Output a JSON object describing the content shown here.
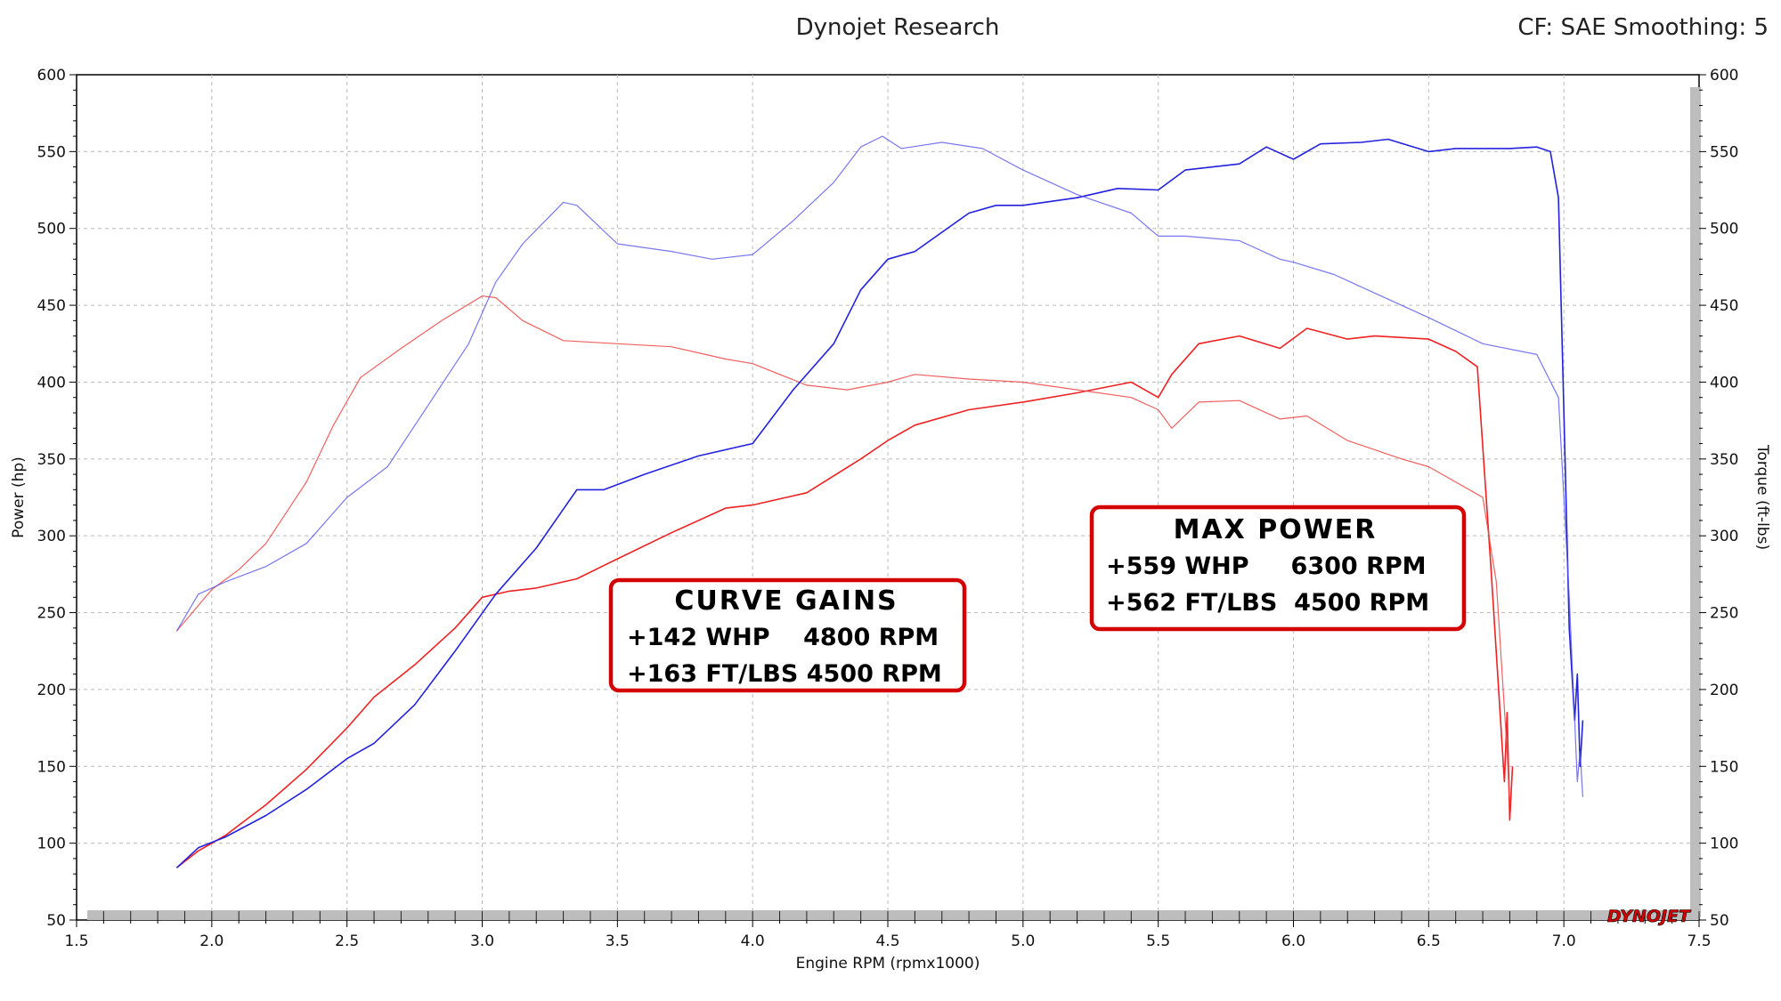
{
  "header": {
    "title": "Dynojet Research",
    "settings": "CF: SAE Smoothing: 5"
  },
  "brand": {
    "logo_text": "DYNOJET"
  },
  "colors": {
    "baseline": "#ee2222",
    "modified": "#2222dd",
    "box_border": "#d40000",
    "grid": "#bbbbbb"
  },
  "annotations": {
    "curve_gains": {
      "title": "CURVE GAINS",
      "line1": "+142 WHP    4800 RPM",
      "line2": "+163 FT/LBS 4500 RPM"
    },
    "max_power": {
      "title": "MAX POWER",
      "line1": "+559 WHP     6300 RPM",
      "line2": "+562 FT/LBS  4500 RPM"
    }
  },
  "chart_data": {
    "type": "line",
    "xlabel": "Engine RPM (rpmx1000)",
    "ylabel": "Power (hp)",
    "y2label": "Torque (ft-lbs)",
    "xlim": [
      1.5,
      7.5
    ],
    "ylim": [
      50,
      600
    ],
    "y2lim": [
      50,
      600
    ],
    "xticks": [
      "1.5",
      "2.0",
      "2.5",
      "3.0",
      "3.5",
      "4.0",
      "4.5",
      "5.0",
      "5.5",
      "6.0",
      "6.5",
      "7.0",
      "7.5"
    ],
    "yticks": [
      "50",
      "100",
      "150",
      "200",
      "250",
      "300",
      "350",
      "400",
      "450",
      "500",
      "550",
      "600"
    ],
    "grid": true,
    "series": [
      {
        "color": "#ee2222",
        "width": 1.6,
        "opacity": 1,
        "x": [
          1.87,
          1.95,
          2.05,
          2.2,
          2.35,
          2.5,
          2.6,
          2.75,
          2.9,
          3.0,
          3.1,
          3.2,
          3.35,
          3.5,
          3.7,
          3.9,
          4.0,
          4.2,
          4.4,
          4.5,
          4.6,
          4.8,
          5.0,
          5.2,
          5.4,
          5.5,
          5.55,
          5.65,
          5.8,
          5.95,
          6.05,
          6.2,
          6.3,
          6.5,
          6.6,
          6.68,
          6.73,
          6.78,
          6.79,
          6.8,
          6.81
        ],
        "y": [
          84,
          95,
          105,
          125,
          148,
          175,
          195,
          216,
          240,
          260,
          264,
          266,
          272,
          285,
          302,
          318,
          320,
          328,
          350,
          362,
          372,
          382,
          387,
          393,
          400,
          390,
          405,
          425,
          430,
          422,
          435,
          428,
          430,
          428,
          420,
          410,
          280,
          140,
          185,
          115,
          150
        ]
      },
      {
        "color": "#ee4444",
        "width": 1.2,
        "opacity": 0.85,
        "x": [
          1.87,
          2.0,
          2.1,
          2.2,
          2.35,
          2.45,
          2.55,
          2.7,
          2.85,
          3.0,
          3.05,
          3.15,
          3.3,
          3.5,
          3.7,
          3.9,
          4.0,
          4.2,
          4.35,
          4.5,
          4.6,
          4.8,
          5.0,
          5.2,
          5.4,
          5.5,
          5.55,
          5.65,
          5.8,
          5.95,
          6.05,
          6.2,
          6.4,
          6.5,
          6.7,
          6.75,
          6.79,
          6.8
        ],
        "y": [
          238,
          265,
          278,
          295,
          335,
          372,
          403,
          422,
          440,
          456,
          455,
          440,
          427,
          425,
          423,
          415,
          412,
          398,
          395,
          400,
          405,
          402,
          400,
          395,
          390,
          382,
          370,
          387,
          388,
          376,
          378,
          362,
          350,
          345,
          325,
          270,
          160,
          125
        ]
      },
      {
        "color": "#2222dd",
        "width": 1.6,
        "opacity": 1,
        "x": [
          1.87,
          1.95,
          2.05,
          2.2,
          2.35,
          2.5,
          2.6,
          2.75,
          2.9,
          3.05,
          3.2,
          3.35,
          3.45,
          3.6,
          3.8,
          4.0,
          4.15,
          4.3,
          4.4,
          4.5,
          4.6,
          4.8,
          4.9,
          5.0,
          5.2,
          5.35,
          5.5,
          5.6,
          5.8,
          5.9,
          6.0,
          6.1,
          6.25,
          6.35,
          6.5,
          6.6,
          6.8,
          6.9,
          6.95,
          6.98,
          7.0,
          7.02,
          7.04,
          7.05,
          7.06,
          7.07
        ],
        "y": [
          84,
          97,
          104,
          118,
          135,
          155,
          165,
          190,
          225,
          262,
          292,
          330,
          330,
          340,
          352,
          360,
          395,
          425,
          460,
          480,
          485,
          510,
          515,
          515,
          520,
          526,
          525,
          538,
          542,
          553,
          545,
          555,
          556,
          558,
          550,
          552,
          552,
          553,
          550,
          520,
          380,
          240,
          180,
          210,
          150,
          180
        ]
      },
      {
        "color": "#5555ee",
        "width": 1.2,
        "opacity": 0.8,
        "x": [
          1.87,
          1.95,
          2.05,
          2.2,
          2.35,
          2.5,
          2.65,
          2.8,
          2.95,
          3.05,
          3.15,
          3.3,
          3.35,
          3.5,
          3.7,
          3.85,
          4.0,
          4.15,
          4.3,
          4.4,
          4.48,
          4.55,
          4.7,
          4.85,
          5.0,
          5.2,
          5.4,
          5.5,
          5.6,
          5.8,
          5.95,
          6.0,
          6.15,
          6.3,
          6.5,
          6.7,
          6.9,
          6.98,
          7.02,
          7.04,
          7.05,
          7.06,
          7.07
        ],
        "y": [
          238,
          262,
          270,
          280,
          295,
          325,
          345,
          385,
          425,
          465,
          490,
          517,
          515,
          490,
          485,
          480,
          483,
          505,
          530,
          553,
          560,
          552,
          556,
          552,
          538,
          522,
          510,
          495,
          495,
          492,
          480,
          478,
          470,
          458,
          442,
          425,
          418,
          390,
          260,
          180,
          140,
          160,
          130
        ]
      }
    ]
  }
}
